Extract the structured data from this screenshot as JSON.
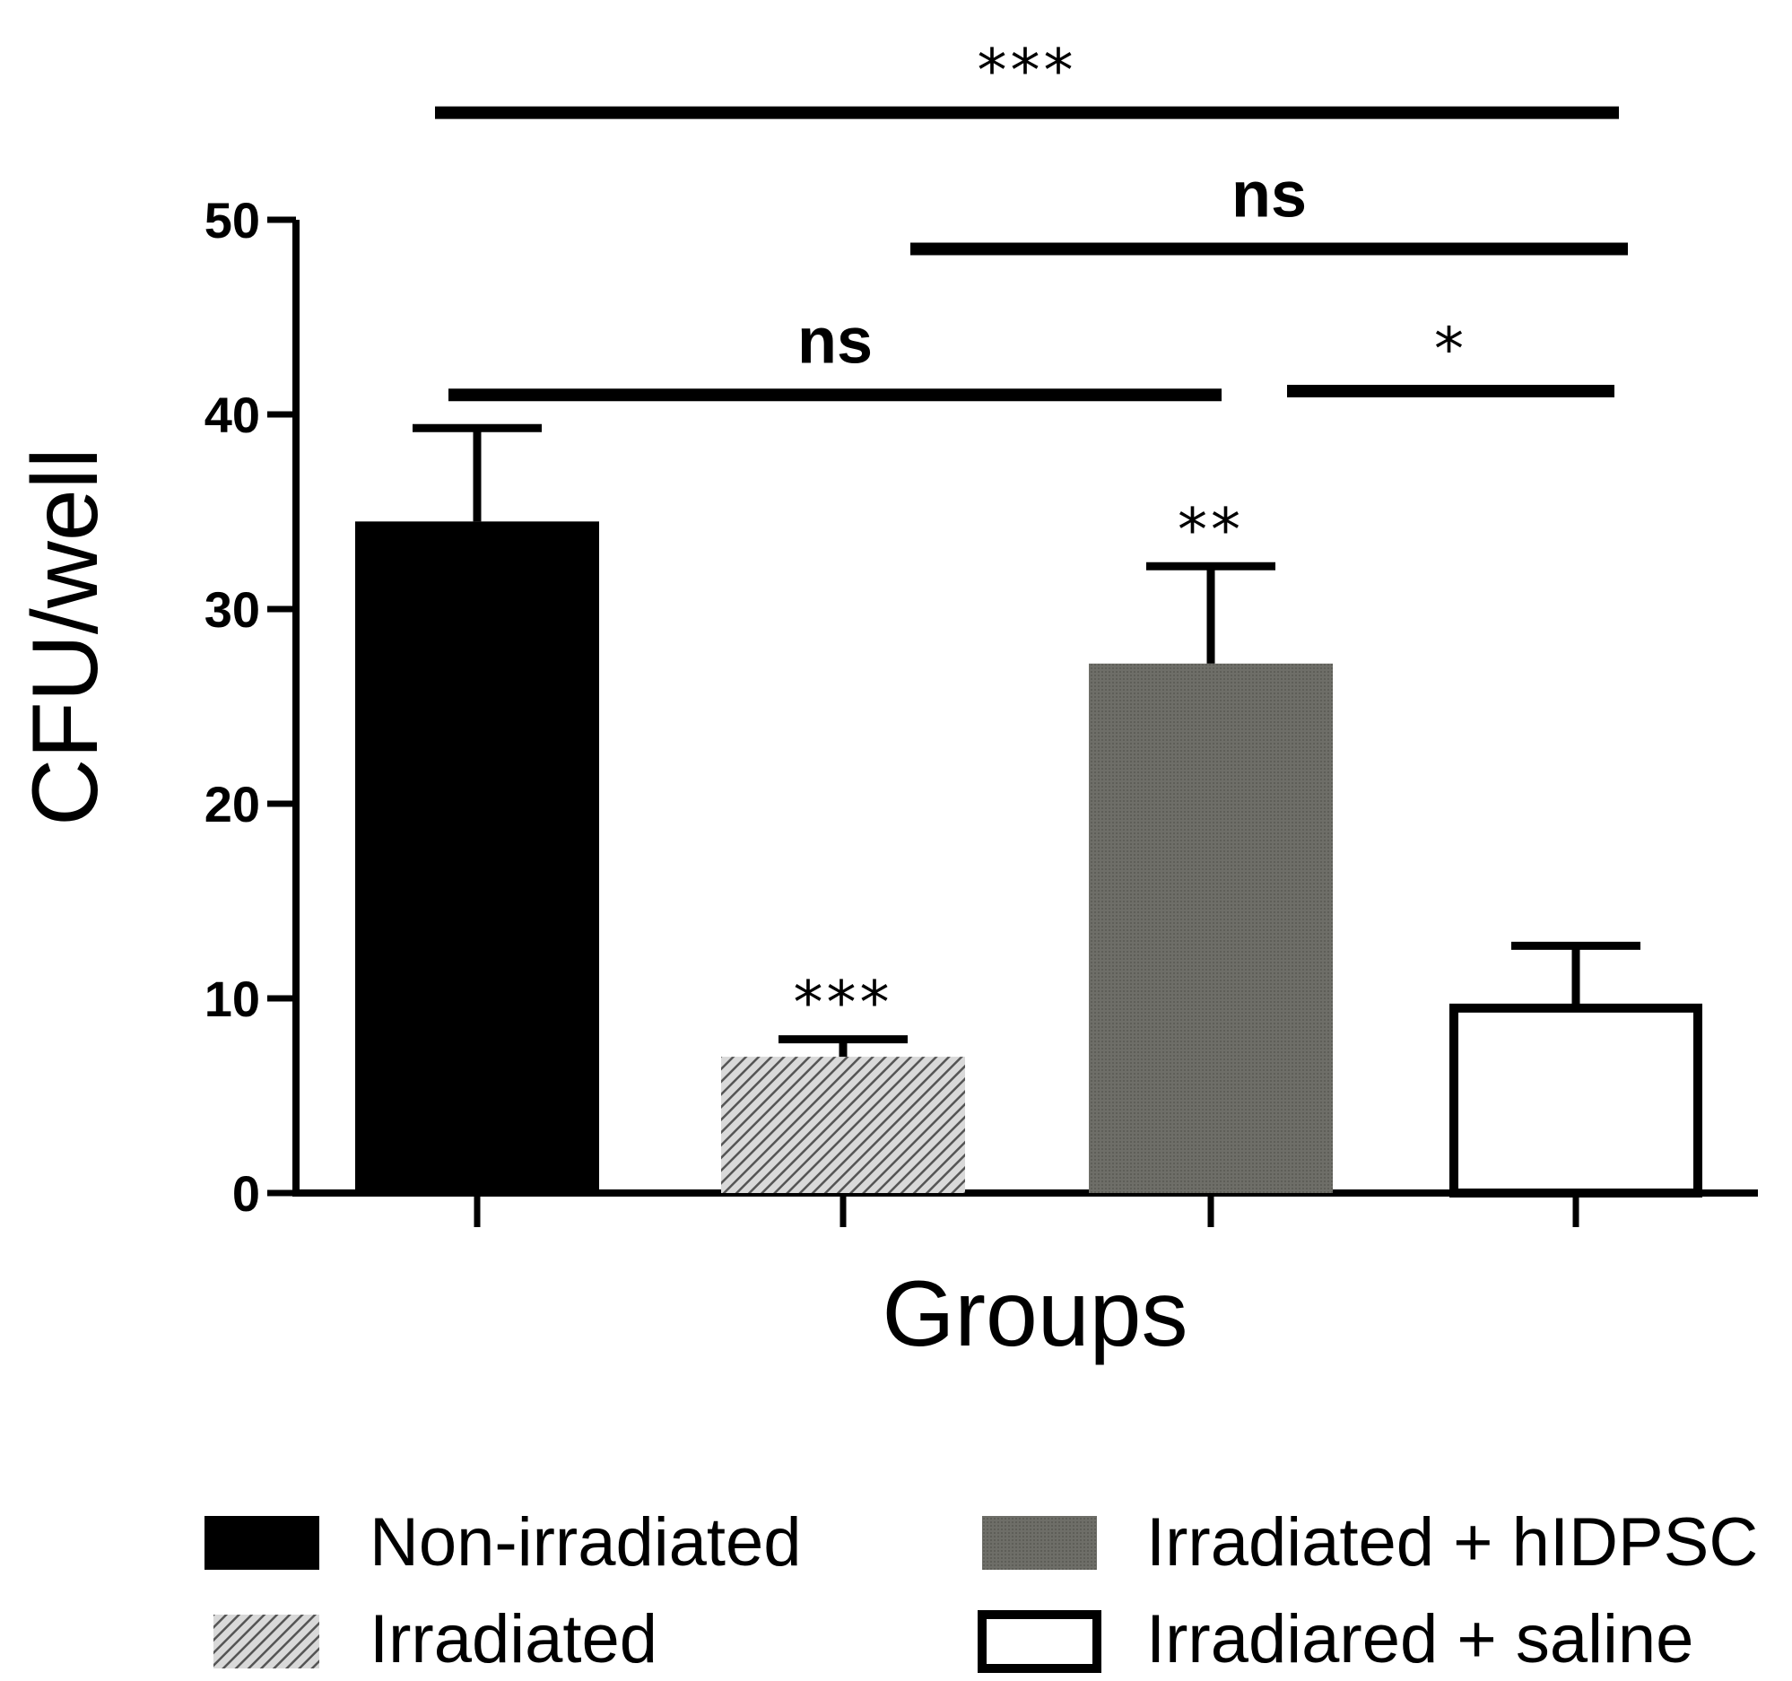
{
  "chart_data": {
    "type": "bar",
    "xlabel": "Groups",
    "ylabel": "CFU/well",
    "ylim": [
      0,
      50
    ],
    "yticks": [
      0,
      10,
      20,
      30,
      40,
      50
    ],
    "categories": [
      "Non-irradiated",
      "Irradiated",
      "Irradiated + hIDPSC",
      "Irradiared + saline"
    ],
    "values": [
      34.5,
      7.0,
      27.2,
      9.5
    ],
    "errors": [
      4.8,
      0.9,
      5.0,
      3.2
    ],
    "bar_annotations": [
      "",
      "***",
      "**",
      ""
    ],
    "bar_styles": [
      {
        "fill": "solid",
        "color": "#000000"
      },
      {
        "fill": "hatched",
        "color": "#808080"
      },
      {
        "fill": "solid",
        "color": "#6a6a64"
      },
      {
        "fill": "open",
        "color": "#ffffff"
      }
    ],
    "comparisons": [
      {
        "from": 0,
        "to": 3,
        "label": "***",
        "y": 55.5
      },
      {
        "from": 1,
        "to": 3,
        "label": "ns",
        "y": 48.5
      },
      {
        "from": 0,
        "to": 2,
        "label": "ns",
        "y": 41.0
      },
      {
        "from": 2,
        "to": 3,
        "label": "*",
        "y": 41.2
      }
    ],
    "legend": [
      {
        "label": "Non-irradiated",
        "style": 0
      },
      {
        "label": "Irradiated + hIDPSC",
        "style": 2
      },
      {
        "label": "Irradiated",
        "style": 1
      },
      {
        "label": "Irradiared + saline",
        "style": 3
      }
    ],
    "legend_position": "bottom"
  }
}
